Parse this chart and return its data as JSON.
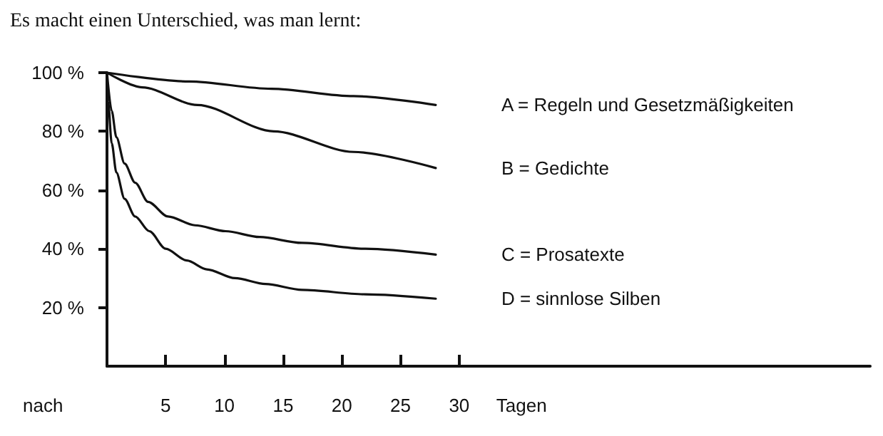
{
  "chart_data": {
    "type": "line",
    "title": "Es macht einen Unterschied, was man lernt:",
    "xlabel": "Tagen",
    "annotations": [
      "nach"
    ],
    "xlim": [
      0,
      65
    ],
    "xticks": [
      5,
      10,
      15,
      20,
      25,
      30
    ],
    "ylim": [
      0,
      100
    ],
    "yticks": [
      {
        "value": 20,
        "label": "20 %"
      },
      {
        "value": 40,
        "label": "40 %"
      },
      {
        "value": 60,
        "label": "60 %"
      },
      {
        "value": 80,
        "label": "80 %"
      },
      {
        "value": 100,
        "label": "100 %"
      }
    ],
    "grid": false,
    "legend": false,
    "marker": "none",
    "line_style": "solid",
    "series": [
      {
        "name": "A = Regeln und Gesetzmäßigkeiten",
        "color": "#111111",
        "x": [
          0,
          7,
          14,
          21,
          28
        ],
        "values": [
          100,
          97,
          94.5,
          92,
          89
        ]
      },
      {
        "name": "B = Gedichte",
        "color": "#111111",
        "x": [
          0,
          3,
          7.7,
          14.2,
          21,
          28
        ],
        "values": [
          100,
          95,
          89,
          80,
          73,
          67.5
        ]
      },
      {
        "name": "C = Prosatexte",
        "color": "#111111",
        "x": [
          0,
          0.4,
          0.8,
          1.5,
          2.4,
          3.5,
          5.2,
          7.5,
          10.1,
          13,
          16.6,
          22,
          28
        ],
        "values": [
          100,
          87,
          78,
          69,
          62.5,
          56,
          51,
          48,
          46,
          44,
          42,
          40,
          38
        ]
      },
      {
        "name": "D = sinnlose Silben",
        "color": "#111111",
        "x": [
          0,
          0.1,
          0.4,
          0.8,
          1.5,
          2.4,
          3.6,
          5,
          6.8,
          8.5,
          10.9,
          13.5,
          16.6,
          22,
          28
        ],
        "values": [
          100,
          90,
          76,
          66,
          57,
          51,
          46,
          40,
          36,
          33,
          30,
          28,
          26,
          24.5,
          23
        ]
      }
    ]
  }
}
